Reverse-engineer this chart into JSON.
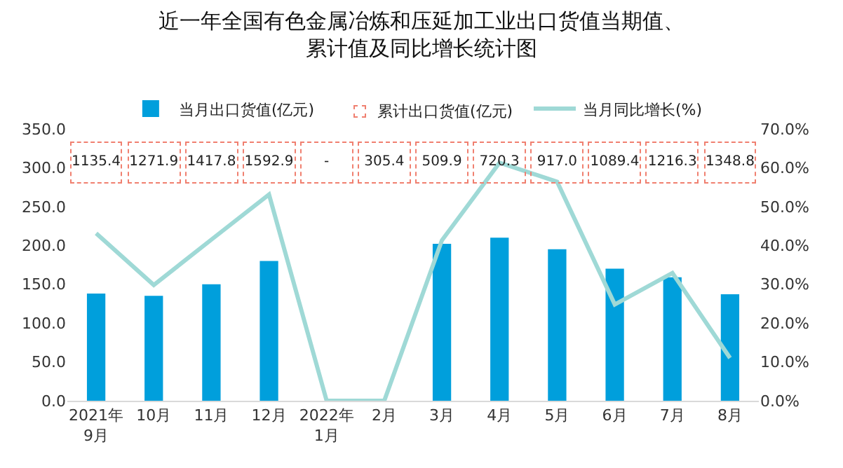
{
  "chart_data": [
    {
      "type": "bar",
      "title": "近一年全国有色金属冶炼和压延加工业出口货值当期值、累计值及同比增长统计图",
      "categories": [
        "2021年\n9月",
        "10月",
        "11月",
        "12月",
        "2022年\n1月",
        "2月",
        "3月",
        "4月",
        "5月",
        "6月",
        "7月",
        "8月"
      ],
      "series": [
        {
          "name": "当月出口货值(亿元)",
          "color": "#009fdc",
          "values": [
            138,
            135,
            150,
            180,
            null,
            null,
            202,
            210,
            195,
            170,
            159,
            137
          ]
        },
        {
          "name": "当月同比增长(%)",
          "type": "line",
          "axis": "y2",
          "color": "#9fd9d6",
          "values": [
            43.1,
            29.8,
            41.5,
            53.1,
            0,
            0,
            41.3,
            61.3,
            56.4,
            24.8,
            32.9,
            11.0
          ]
        }
      ],
      "ylim": [
        0,
        350
      ],
      "yticks": [
        {
          "value": 0,
          "label": "0.0"
        },
        {
          "value": 50,
          "label": "50.0"
        },
        {
          "value": 100,
          "label": "100.0"
        },
        {
          "value": 150,
          "label": "150.0"
        },
        {
          "value": 200,
          "label": "200.0"
        },
        {
          "value": 250,
          "label": "250.0"
        },
        {
          "value": 300,
          "label": "300.0"
        },
        {
          "value": 350,
          "label": "350.0"
        }
      ],
      "y2lim": [
        0,
        70
      ],
      "y2ticks": [
        {
          "value": 0,
          "label": "0.0%"
        },
        {
          "value": 10,
          "label": "10.0%"
        },
        {
          "value": 20,
          "label": "20.0%"
        },
        {
          "value": 30,
          "label": "30.0%"
        },
        {
          "value": 40,
          "label": "40.0%"
        },
        {
          "value": 50,
          "label": "50.0%"
        },
        {
          "value": 60,
          "label": "60.0%"
        },
        {
          "value": 70,
          "label": "70.0%"
        }
      ],
      "grid": false,
      "legend": "top",
      "marker": "none"
    },
    {
      "type": "other",
      "categories": [
        null,
        null,
        null,
        null,
        null,
        null,
        null,
        null,
        null,
        null,
        null,
        null
      ],
      "series": [
        {
          "name": "累计出口货值(亿元)",
          "color": "#f08070",
          "line_style": "dashed",
          "values": [
            1135.4,
            1271.9,
            1417.8,
            1592.9,
            null,
            305.4,
            509.9,
            720.3,
            917.0,
            1089.4,
            1216.3,
            1348.8
          ],
          "value_labels": [
            "1135.4",
            "1271.9",
            "1417.8",
            "1592.9",
            "-",
            "305.4",
            "509.9",
            "720.3",
            "917.0",
            "1089.4",
            "1216.3",
            "1348.8"
          ]
        }
      ],
      "legend": "top"
    }
  ]
}
